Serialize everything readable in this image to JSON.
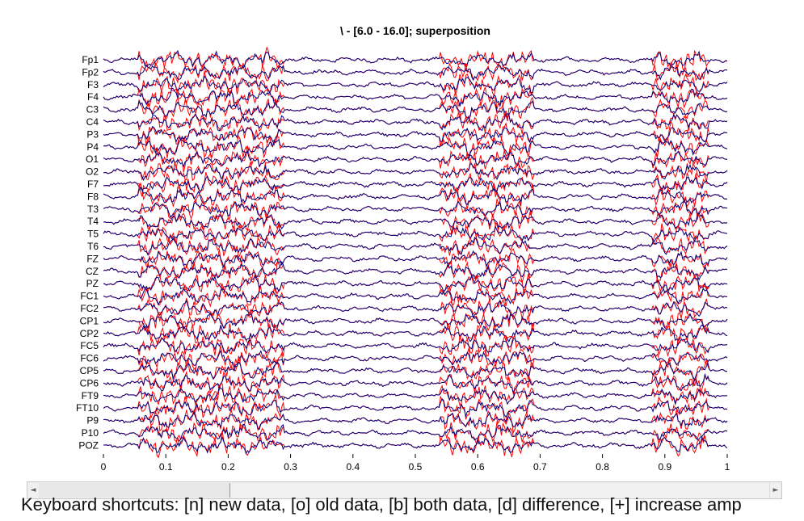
{
  "title": "\\ - [6.0 - 16.0]; superposition",
  "chart_data": {
    "type": "line",
    "title": "\\ - [6.0 - 16.0]; superposition",
    "channels": [
      "Fp1",
      "Fp2",
      "F3",
      "F4",
      "C3",
      "C4",
      "P3",
      "P4",
      "O1",
      "O2",
      "F7",
      "F8",
      "T3",
      "T4",
      "T5",
      "T6",
      "FZ",
      "CZ",
      "PZ",
      "FC1",
      "FC2",
      "CP1",
      "CP2",
      "FC5",
      "FC6",
      "CP5",
      "CP6",
      "FT9",
      "FT10",
      "P9",
      "P10",
      "POZ"
    ],
    "x_ticks": [
      "0",
      "0.1",
      "0.2",
      "0.3",
      "0.4",
      "0.5",
      "0.6",
      "0.7",
      "0.8",
      "0.9",
      "1"
    ],
    "xlim": [
      0,
      1
    ],
    "series": [
      {
        "color": "#ff0000",
        "segments_active": [
          [
            0.055,
            0.29
          ],
          [
            0.54,
            0.69
          ],
          [
            0.88,
            0.97
          ]
        ]
      },
      {
        "color": "#00007f"
      }
    ]
  },
  "scrollbar": {
    "left_arrow": "◄",
    "right_arrow": "►"
  },
  "help": {
    "line1": "Keyboard shortcuts: [n] new data, [o] old data, [b] both data, [d] difference, [+] increase amp",
    "line2": ""
  }
}
